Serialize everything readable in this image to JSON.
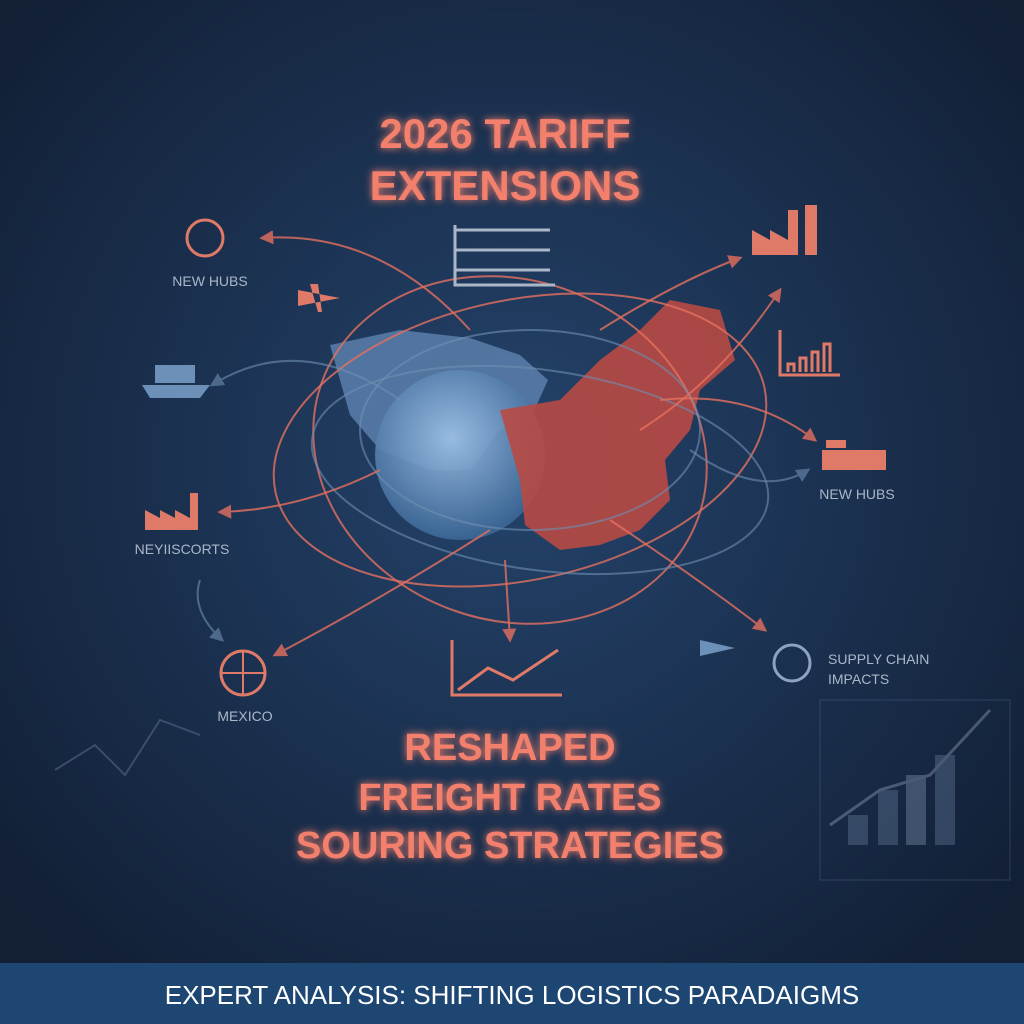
{
  "header": {
    "title_lines": [
      "2026 TARIFF",
      "EXTENSIONS"
    ]
  },
  "labels": [
    {
      "lines": [
        "NEW HUBS"
      ]
    },
    {
      "lines": [
        "NEW HUBS"
      ]
    },
    {
      "lines": [
        "NEYIISCORTS"
      ]
    },
    {
      "lines": [
        "MEXICO"
      ]
    },
    {
      "lines": [
        "SUPPLY CHAIN",
        "IMPACTS"
      ]
    }
  ],
  "outcome": {
    "lines": [
      "RESHAPED",
      "FREIGHT RATES",
      "SOURING STRATEGIES"
    ]
  },
  "footer": {
    "text": "EXPERT ANALYSIS: SHIFTING LOGISTICS PARADAIGMS"
  }
}
